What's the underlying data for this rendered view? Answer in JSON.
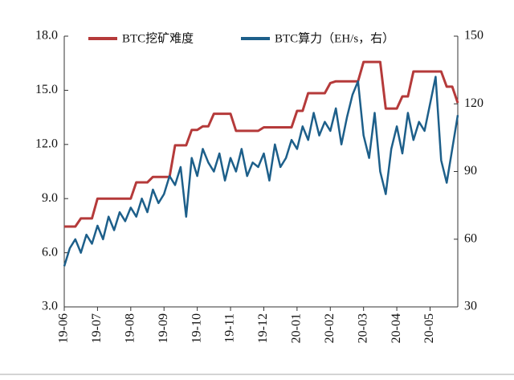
{
  "chart_data": {
    "type": "line",
    "categories": [
      "19-06",
      null,
      null,
      null,
      null,
      null,
      "19-07",
      null,
      null,
      null,
      null,
      null,
      "19-08",
      null,
      null,
      null,
      null,
      null,
      "19-09",
      null,
      null,
      null,
      null,
      null,
      "19-10",
      null,
      null,
      null,
      null,
      null,
      "19-11",
      null,
      null,
      null,
      null,
      null,
      "19-12",
      null,
      null,
      null,
      null,
      null,
      "20-01",
      null,
      null,
      null,
      null,
      null,
      "20-02",
      null,
      null,
      null,
      null,
      null,
      "20-03",
      null,
      null,
      null,
      null,
      null,
      "20-04",
      null,
      null,
      null,
      null,
      null,
      "20-05",
      null,
      null,
      null,
      null,
      null
    ],
    "series": [
      {
        "name": "BTC挖矿难度",
        "color": "#b53a3a",
        "values": [
          7.45,
          7.45,
          7.45,
          7.9,
          7.9,
          7.9,
          9.0,
          9.0,
          9.0,
          9.0,
          9.0,
          9.0,
          9.0,
          9.9,
          9.9,
          9.9,
          10.2,
          10.2,
          10.2,
          10.2,
          11.95,
          11.95,
          11.95,
          12.8,
          12.8,
          13.0,
          13.0,
          13.7,
          13.7,
          13.7,
          13.7,
          12.75,
          12.75,
          12.75,
          12.75,
          12.75,
          12.95,
          12.95,
          12.95,
          12.95,
          12.95,
          12.95,
          13.86,
          13.86,
          14.84,
          14.84,
          14.84,
          14.84,
          15.4,
          15.5,
          15.5,
          15.5,
          15.5,
          15.5,
          16.57,
          16.57,
          16.57,
          16.57,
          13.99,
          13.99,
          13.99,
          14.66,
          14.66,
          16.04,
          16.04,
          16.04,
          16.04,
          16.04,
          16.04,
          15.2,
          15.2,
          14.3
        ]
      },
      {
        "name": "BTC算力（EH/s，右）",
        "color": "#1d5f8a",
        "axis": "y2",
        "values": [
          48,
          56,
          60,
          54,
          62,
          58,
          66,
          60,
          70,
          64,
          72,
          68,
          74,
          70,
          78,
          72,
          82,
          76,
          80,
          88,
          84,
          92,
          70,
          96,
          88,
          100,
          94,
          90,
          98,
          86,
          96,
          90,
          100,
          88,
          94,
          92,
          98,
          86,
          102,
          92,
          96,
          104,
          100,
          110,
          104,
          116,
          106,
          112,
          108,
          118,
          102,
          114,
          124,
          130,
          106,
          96,
          116,
          90,
          80,
          100,
          110,
          98,
          116,
          104,
          112,
          108,
          120,
          132,
          95,
          85,
          100,
          115
        ]
      }
    ],
    "ylim": [
      3,
      18
    ],
    "yticks": [
      {
        "value": 3,
        "label": "3.0"
      },
      {
        "value": 6,
        "label": "6.0"
      },
      {
        "value": 9,
        "label": "9.0"
      },
      {
        "value": 12,
        "label": "12.0"
      },
      {
        "value": 15,
        "label": "15.0"
      },
      {
        "value": 18,
        "label": "18.0"
      }
    ],
    "y2lim": [
      30,
      150
    ],
    "y2ticks": [
      30,
      60,
      90,
      120,
      150
    ]
  }
}
